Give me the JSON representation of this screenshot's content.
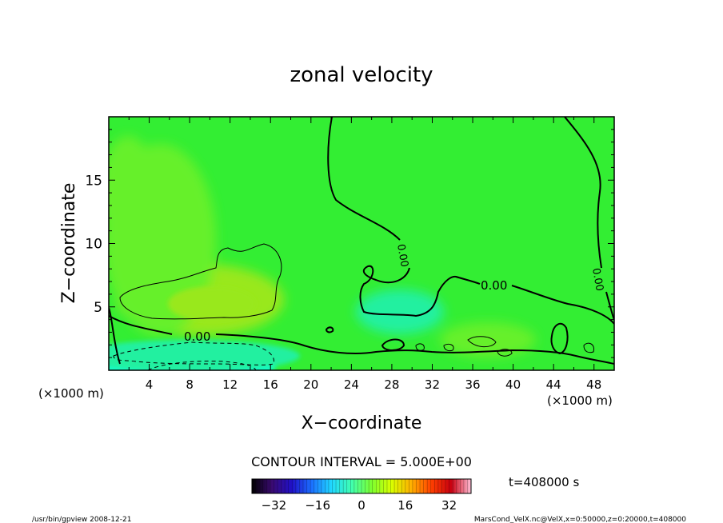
{
  "chart_data": {
    "type": "heatmap",
    "title": "zonal velocity",
    "xlabel": "X−coordinate",
    "ylabel": "Z−coordinate",
    "x_unit_left": "(×1000 m)",
    "x_unit_right": "(×1000 m)",
    "xlim": [
      0,
      50
    ],
    "ylim": [
      0,
      20
    ],
    "x_ticks": [
      4,
      8,
      12,
      16,
      20,
      24,
      28,
      32,
      36,
      40,
      44,
      48
    ],
    "y_ticks": [
      5,
      10,
      15
    ],
    "contour_interval_text": "CONTOUR INTERVAL = 5.000E+00",
    "contour_label": "0.00",
    "colorbar": {
      "range": [
        -40,
        40
      ],
      "ticks": [
        -32,
        -16,
        0,
        16,
        32
      ],
      "colors": [
        "#000000",
        "#3a0a70",
        "#2010c8",
        "#1b70ff",
        "#20d8ff",
        "#40ffb0",
        "#7cff30",
        "#d8ff00",
        "#ffb000",
        "#ff4000",
        "#c80010",
        "#ffc0d8"
      ]
    },
    "time_text": "t=408000 s",
    "field_colors": {
      "background": "#33ee33",
      "light_green": "#66f02a",
      "yellow_green": "#99e81a",
      "cyan": "#10ffd0",
      "teal": "#20f0a0"
    }
  },
  "footer": {
    "left": "/usr/bin/gpview   2008-12-21",
    "right": "MarsCond_VelX.nc@VelX,x=0:50000,z=0:20000,t=408000"
  }
}
